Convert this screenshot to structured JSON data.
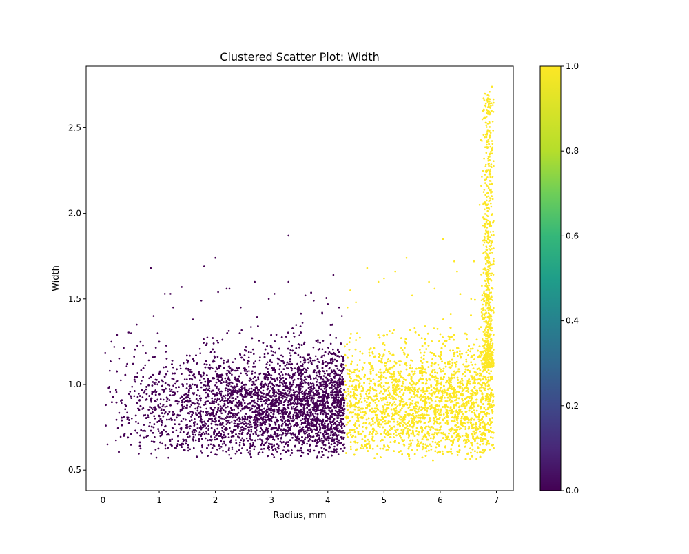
{
  "chart_data": {
    "type": "scatter",
    "title": "Clustered Scatter Plot: Width",
    "xlabel": "Radius, mm",
    "ylabel": "Width",
    "xlim": [
      -0.3,
      7.3
    ],
    "ylim": [
      0.38,
      2.86
    ],
    "xticks": [
      0,
      1,
      2,
      3,
      4,
      5,
      6,
      7
    ],
    "yticks": [
      0.5,
      1.0,
      1.5,
      2.0,
      2.5
    ],
    "xtick_labels": [
      "0",
      "1",
      "2",
      "3",
      "4",
      "5",
      "6",
      "7"
    ],
    "ytick_labels": [
      "0.5",
      "1.0",
      "1.5",
      "2.0",
      "2.5"
    ],
    "grid": false,
    "legend": "none",
    "colorbar": {
      "min": 0.0,
      "max": 1.0,
      "ticks": [
        0.0,
        0.2,
        0.4,
        0.6,
        0.8,
        1.0
      ],
      "tick_labels": [
        "0.0",
        "0.2",
        "0.4",
        "0.6",
        "0.8",
        "1.0"
      ],
      "colormap": "viridis"
    },
    "clusters": [
      {
        "label": 0,
        "color": "#440154",
        "x_range": [
          0.0,
          4.3
        ],
        "y_core_range": [
          0.55,
          1.25
        ],
        "density_increases_with_x": true
      },
      {
        "label": 1,
        "color": "#fde725",
        "x_range": [
          4.3,
          6.95
        ],
        "y_core_range": [
          0.55,
          1.3
        ],
        "tail_near_x": 6.85,
        "tail_max_y": 2.75
      }
    ],
    "series": [
      {
        "cluster": 0,
        "color": "#440154",
        "points": [
          [
            3.3,
            1.87
          ],
          [
            2.0,
            1.74
          ],
          [
            1.8,
            1.69
          ],
          [
            0.85,
            1.68
          ],
          [
            4.1,
            1.64
          ],
          [
            3.3,
            1.6
          ],
          [
            2.7,
            1.6
          ],
          [
            1.4,
            1.57
          ],
          [
            2.2,
            1.56
          ],
          [
            2.25,
            1.56
          ],
          [
            1.1,
            1.53
          ],
          [
            1.2,
            1.53
          ],
          [
            3.05,
            1.53
          ],
          [
            3.6,
            1.52
          ],
          [
            2.95,
            1.5
          ],
          [
            3.75,
            1.49
          ],
          [
            1.75,
            1.49
          ],
          [
            2.45,
            1.45
          ],
          [
            1.25,
            1.45
          ],
          [
            4.0,
            1.47
          ],
          [
            0.25,
            1.29
          ],
          [
            0.6,
            1.35
          ],
          [
            0.5,
            1.3
          ],
          [
            0.15,
            1.25
          ],
          [
            0.2,
            1.22
          ],
          [
            4.2,
            1.45
          ],
          [
            3.9,
            1.42
          ],
          [
            4.25,
            1.4
          ],
          [
            0.9,
            1.4
          ],
          [
            1.6,
            1.38
          ],
          [
            0.05,
            0.88
          ],
          [
            0.05,
            0.76
          ],
          [
            0.08,
            0.65
          ],
          [
            0.1,
            0.98
          ],
          [
            0.12,
            1.08
          ]
        ]
      },
      {
        "cluster": 1,
        "color": "#fde725",
        "points": [
          [
            6.92,
            2.74
          ],
          [
            6.88,
            2.71
          ],
          [
            6.8,
            2.63
          ],
          [
            6.85,
            2.58
          ],
          [
            6.75,
            2.55
          ],
          [
            6.83,
            2.46
          ],
          [
            6.86,
            2.42
          ],
          [
            6.72,
            2.43
          ],
          [
            6.9,
            2.36
          ],
          [
            6.78,
            2.32
          ],
          [
            6.82,
            2.2
          ],
          [
            6.86,
            2.1
          ],
          [
            6.7,
            2.05
          ],
          [
            6.05,
            1.85
          ],
          [
            6.88,
            1.95
          ],
          [
            5.4,
            1.74
          ],
          [
            6.25,
            1.72
          ],
          [
            6.6,
            1.72
          ],
          [
            4.7,
            1.68
          ],
          [
            5.2,
            1.66
          ],
          [
            6.3,
            1.66
          ],
          [
            5.0,
            1.62
          ],
          [
            4.9,
            1.6
          ],
          [
            5.8,
            1.6
          ],
          [
            5.9,
            1.56
          ],
          [
            4.4,
            1.55
          ],
          [
            4.5,
            1.48
          ],
          [
            5.5,
            1.52
          ],
          [
            6.55,
            1.5
          ],
          [
            4.35,
            1.45
          ]
        ]
      }
    ],
    "visible_point_budget": 18000
  }
}
